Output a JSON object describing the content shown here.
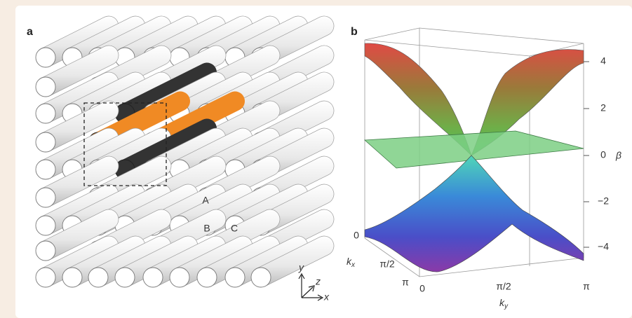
{
  "panel_a": {
    "label": "a",
    "rod_labels": [
      "A",
      "B",
      "C"
    ],
    "axes": [
      "y",
      "z",
      "x"
    ]
  },
  "panel_b": {
    "label": "b",
    "beta_label": "β",
    "beta_ticks": [
      "4",
      "2",
      "0",
      "−2",
      "−4"
    ],
    "kx_label": "k",
    "kx_sub": "x",
    "kx_ticks": [
      "0",
      "π/2",
      "π"
    ],
    "ky_label": "k",
    "ky_sub": "y",
    "ky_ticks": [
      "0",
      "π/2",
      "π"
    ]
  }
}
